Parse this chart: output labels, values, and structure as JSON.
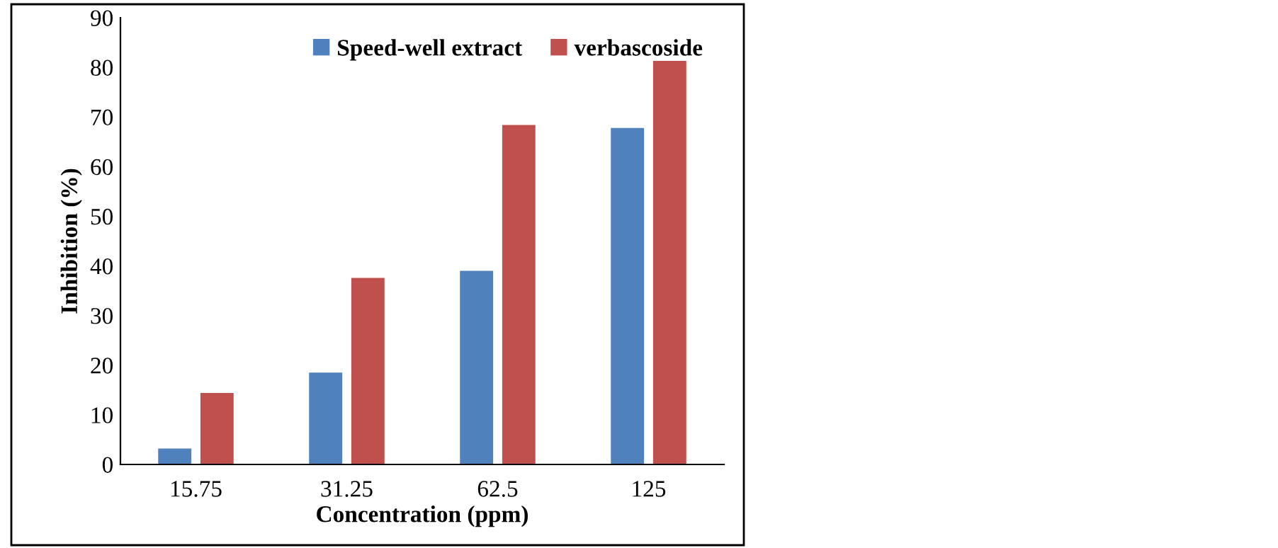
{
  "chart_data": {
    "type": "bar",
    "xlabel": "Concentration (ppm)",
    "ylabel": "Inhibition (%)",
    "categories": [
      "15.75",
      "31.25",
      "62.5",
      "125"
    ],
    "series": [
      {
        "name": "Speed-well extract",
        "color": "#4f81bd",
        "values": [
          3.2,
          18.5,
          39.0,
          67.8
        ]
      },
      {
        "name": "verbascoside",
        "color": "#c0504d",
        "values": [
          14.4,
          37.6,
          68.4,
          81.3
        ]
      }
    ],
    "ylim": [
      0,
      90
    ],
    "yticks": [
      0,
      10,
      20,
      30,
      40,
      50,
      60,
      70,
      80,
      90
    ],
    "grid": false,
    "legend": "top right"
  }
}
